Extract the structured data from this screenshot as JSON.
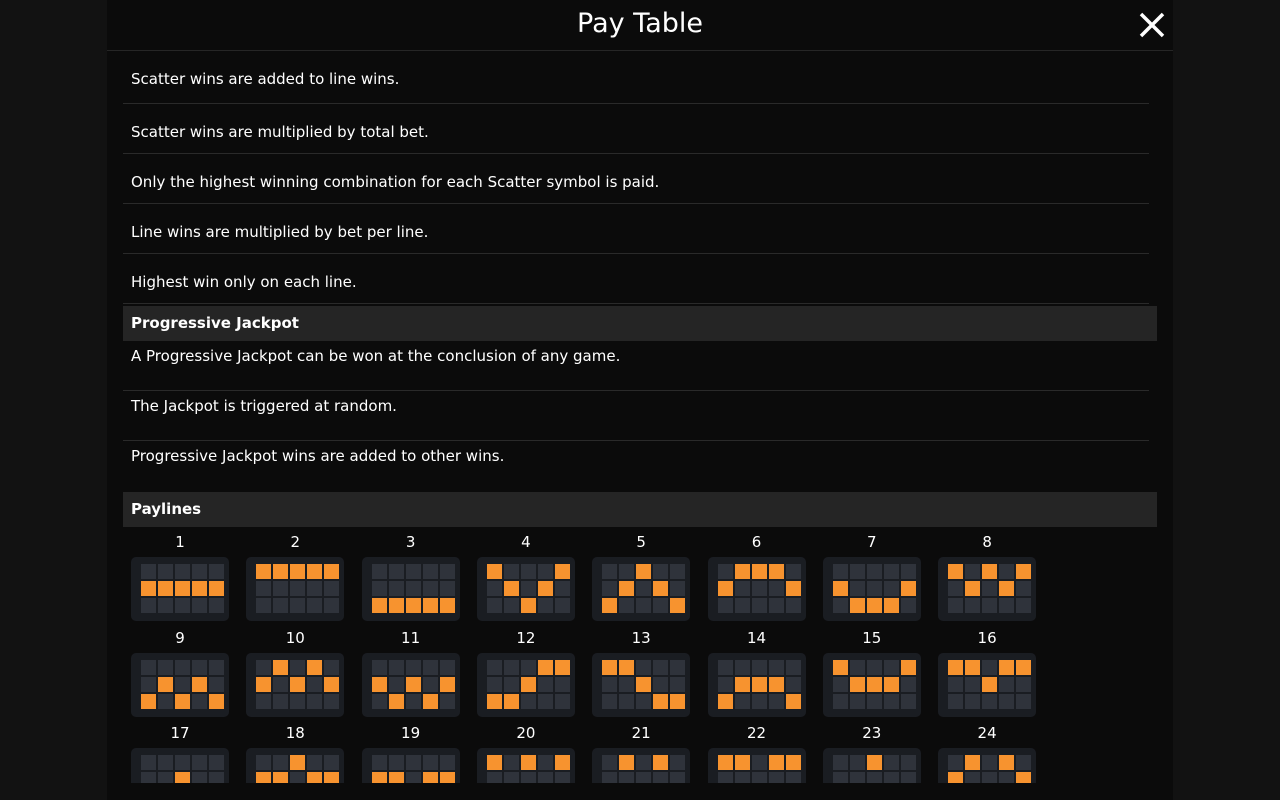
{
  "header": {
    "title": "Pay Table"
  },
  "sections": [
    {
      "items": [
        "Scatter wins are added to line wins.",
        "Scatter wins are multiplied by total bet.",
        "Only the highest winning combination for each Scatter symbol is paid.",
        "Line wins are multiplied by bet per line.",
        "Highest win only on each line."
      ]
    },
    {
      "title": "Progressive Jackpot",
      "items": [
        "A Progressive Jackpot can be won at the conclusion of any game.",
        "The Jackpot is triggered at random.",
        "Progressive Jackpot wins are added to other wins."
      ]
    },
    {
      "title": "Paylines",
      "paylines": [
        1,
        2,
        3,
        4,
        5,
        6,
        7,
        8,
        9,
        10,
        11,
        12,
        13,
        14,
        15,
        16,
        17,
        18,
        19,
        20,
        21,
        22,
        23,
        24
      ]
    }
  ]
}
